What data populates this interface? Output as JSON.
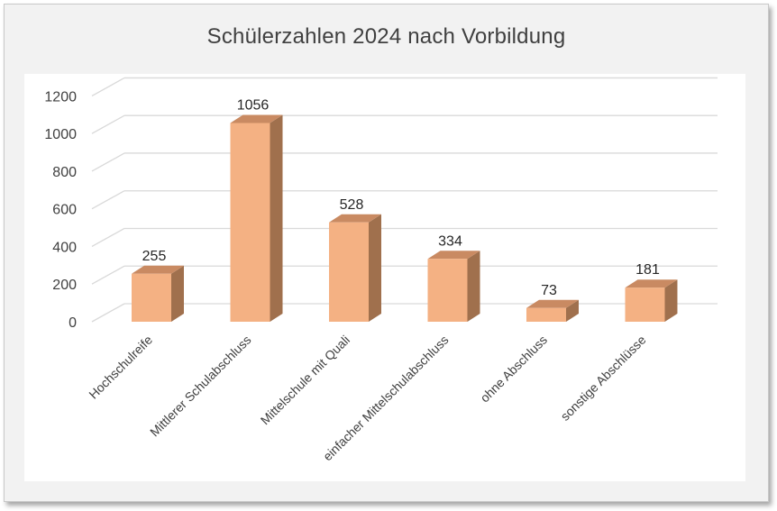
{
  "chart_data": {
    "type": "bar",
    "title": "Schülerzahlen 2024 nach Vorbildung",
    "categories": [
      "Hochschulreife",
      "Mittlerer Schulabschluss",
      "Mittelschule mit Quali",
      "einfacher Mittelschulabschluss",
      "ohne Abschluss",
      "sonstige Abschlüsse"
    ],
    "series": [
      {
        "values": [
          255,
          1056,
          528,
          334,
          73,
          181
        ]
      }
    ],
    "data_labels": [
      "255",
      "1056",
      "528",
      "334",
      "73",
      "181"
    ],
    "yticks": [
      0,
      200,
      400,
      600,
      800,
      1000,
      1200
    ],
    "ylim": [
      0,
      1200
    ],
    "xlabel": "",
    "ylabel": "",
    "grid": true,
    "legend": "none",
    "bar_colors": {
      "front": "#f4b183",
      "top": "#c98a62",
      "side": "#a0704d"
    },
    "grid_color": "#d9d9d9"
  }
}
